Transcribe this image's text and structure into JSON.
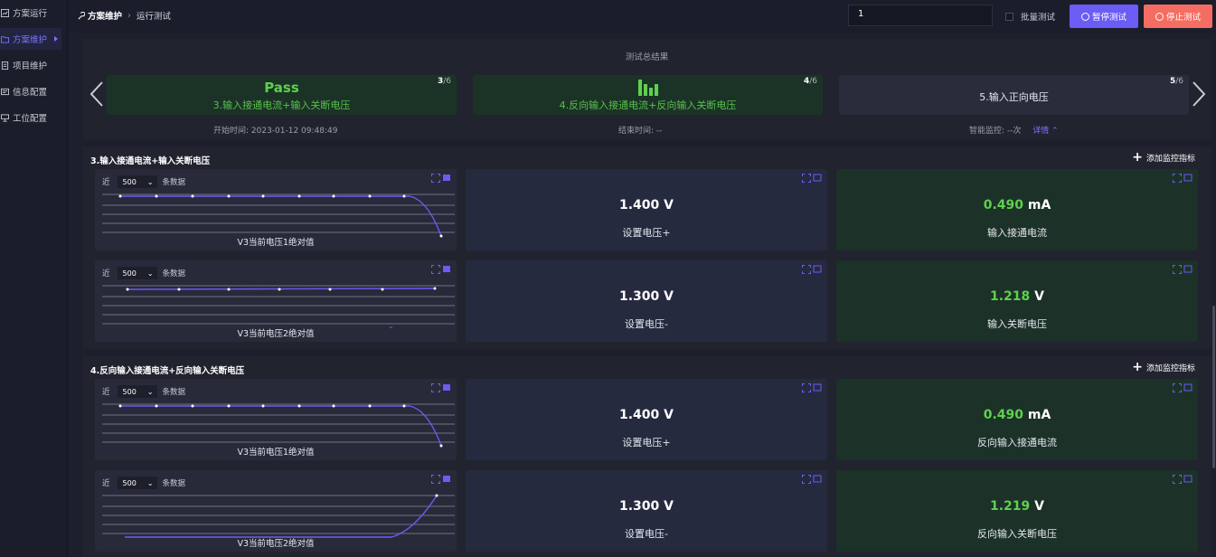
{
  "sidebar": {
    "items": [
      {
        "label": "方案运行",
        "icon": "chart-icon"
      },
      {
        "label": "方案维护",
        "icon": "folder-icon",
        "active": true
      },
      {
        "label": "项目维护",
        "icon": "document-icon"
      },
      {
        "label": "信息配置",
        "icon": "info-icon"
      },
      {
        "label": "工位配置",
        "icon": "desk-icon"
      }
    ]
  },
  "header": {
    "breadcrumb": [
      "方案维护",
      "运行测试"
    ],
    "search_value": "1",
    "batch_label": "批量测试",
    "pause_label": "暂停测试",
    "stop_label": "停止测试"
  },
  "summary": {
    "title": "测试总结果",
    "cards": [
      {
        "status": "Pass",
        "label": "3.输入接通电流+输入关断电压",
        "current": "3",
        "total": "/6"
      },
      {
        "label": "4.反向输入接通电流+反向输入关断电压",
        "current": "4",
        "total": "/6"
      },
      {
        "label": "5.输入正向电压",
        "current": "5",
        "total": "/6"
      }
    ],
    "start_time": "开始时间:   2023-01-12 09:48:49",
    "end_time": "结束时间:  --",
    "monitor": "智能监控:  --次",
    "detail": "详情"
  },
  "common": {
    "near": "近",
    "count": "500",
    "records": "条数据",
    "add_metric": "添加监控指标"
  },
  "sections": [
    {
      "title": "3.输入接通电流+输入关断电压",
      "rows": [
        {
          "chart_caption": "V3当前电压1绝对值",
          "set_value": "1.400 V",
          "set_label": "设置电压+",
          "meas_num": "0.490",
          "meas_unit": " mA",
          "meas_label": "输入接通电流"
        },
        {
          "chart_caption": "V3当前电压2绝对值",
          "set_value": "1.300 V",
          "set_label": "设置电压-",
          "meas_num": "1.218",
          "meas_unit": " V",
          "meas_label": "输入关断电压"
        }
      ]
    },
    {
      "title": "4.反向输入接通电流+反向输入关断电压",
      "rows": [
        {
          "chart_caption": "V3当前电压1绝对值",
          "set_value": "1.400 V",
          "set_label": "设置电压+",
          "meas_num": "0.490",
          "meas_unit": " mA",
          "meas_label": "反向输入接通电流"
        },
        {
          "chart_caption": "V3当前电压2绝对值",
          "set_value": "1.300 V",
          "set_label": "设置电压-",
          "meas_num": "1.219",
          "meas_unit": " V",
          "meas_label": "反向输入关断电压"
        }
      ]
    }
  ],
  "colors": {
    "accent": "#6a5cf5",
    "danger": "#f56d62",
    "success": "#5fd04e"
  }
}
